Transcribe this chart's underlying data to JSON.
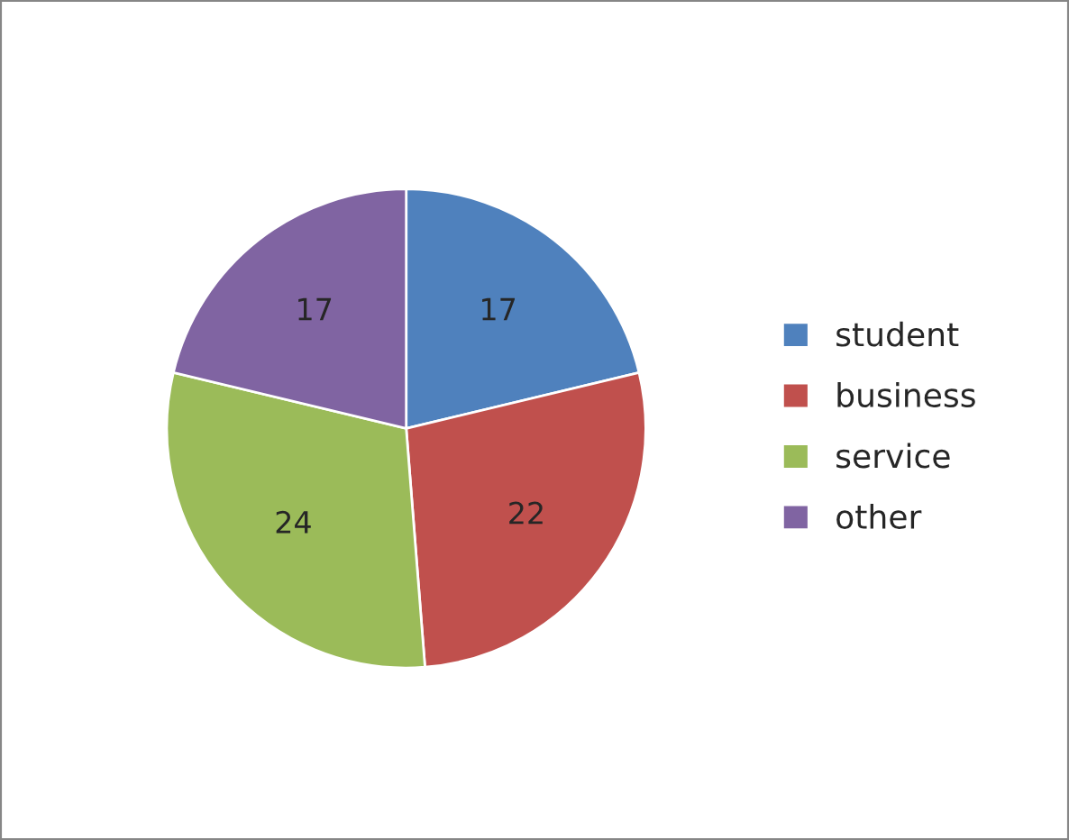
{
  "chart_data": {
    "type": "pie",
    "categories": [
      "student",
      "business",
      "service",
      "other"
    ],
    "values": [
      17,
      22,
      24,
      17
    ],
    "colors": [
      "#4f81bd",
      "#c0504d",
      "#9bbb59",
      "#8064a2"
    ],
    "data_labels": true,
    "legend": "right"
  }
}
